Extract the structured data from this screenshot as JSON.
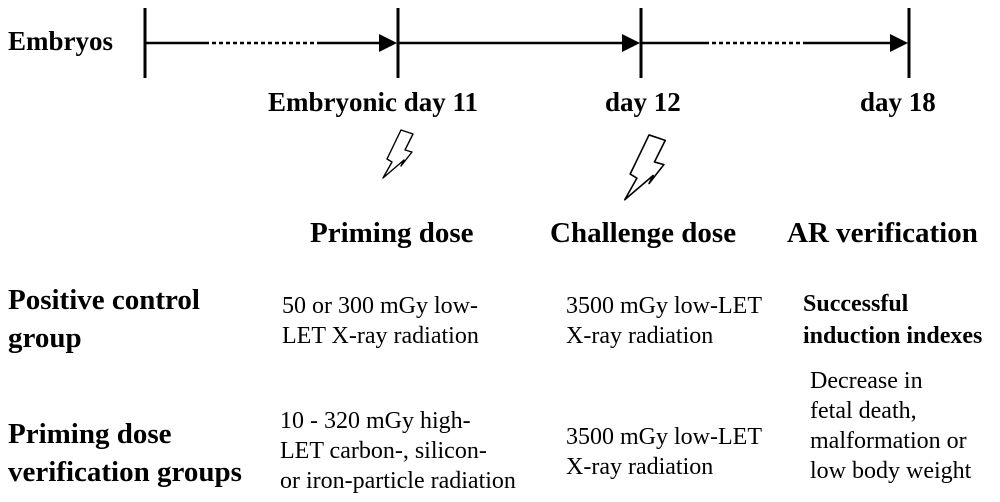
{
  "timeline": {
    "start_label": "Embryos",
    "ticks": [
      "Embryonic day  11",
      "day 12",
      "day  18"
    ]
  },
  "stages": {
    "priming": "Priming dose",
    "challenge": "Challenge dose",
    "verification": "AR verification"
  },
  "groups": [
    {
      "name_lines": [
        "Positive control",
        "group"
      ],
      "priming_lines": [
        "50 or 300 mGy low-",
        "LET X-ray radiation"
      ],
      "challenge_lines": [
        "3500 mGy low-LET",
        "X-ray radiation"
      ]
    },
    {
      "name_lines": [
        "Priming dose",
        "verification groups"
      ],
      "priming_lines": [
        "10 - 320 mGy high-",
        "LET carbon-, silicon-",
        "or iron-particle radiation"
      ],
      "challenge_lines": [
        "3500 mGy low-LET",
        "X-ray radiation"
      ]
    }
  ],
  "verification": {
    "heading_lines": [
      "Successful",
      "induction indexes"
    ],
    "detail_lines": [
      "Decrease in",
      "fetal death,",
      "malformation or",
      "low body weight"
    ]
  }
}
